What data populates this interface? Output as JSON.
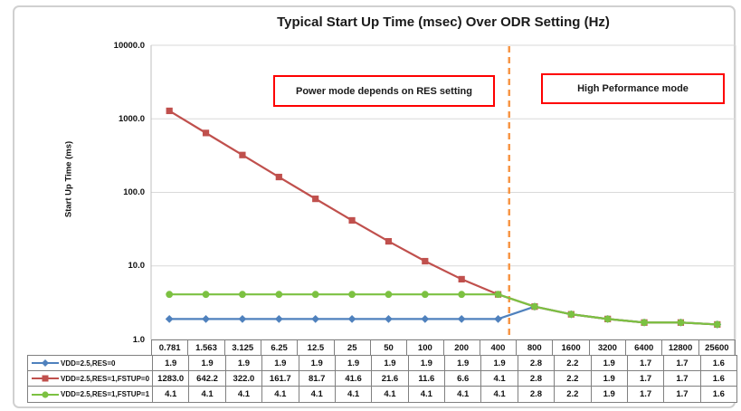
{
  "annotations": {
    "left_box": "Power mode depends on RES setting",
    "right_box": "High Peformance mode"
  },
  "chart_data": {
    "type": "line",
    "title": "Typical Start Up Time (msec) Over ODR Setting (Hz)",
    "xlabel": "",
    "ylabel": "Start Up Time (ms)",
    "y_scale": "log",
    "ylim": [
      1.0,
      10000.0
    ],
    "ytick_labels": [
      "10000.0",
      "1000.0",
      "100.0",
      "10.0",
      "1.0"
    ],
    "grid": "horizontal",
    "legend_position": "data-table-left",
    "categories": [
      "0.781",
      "1.563",
      "3.125",
      "6.25",
      "12.5",
      "25",
      "50",
      "100",
      "200",
      "400",
      "800",
      "1600",
      "3200",
      "6400",
      "12800",
      "25600"
    ],
    "series": [
      {
        "name": "VDD=2.5,RES=0",
        "color": "#4f81bd",
        "marker": "diamond",
        "values": [
          1.9,
          1.9,
          1.9,
          1.9,
          1.9,
          1.9,
          1.9,
          1.9,
          1.9,
          1.9,
          2.8,
          2.2,
          1.9,
          1.7,
          1.7,
          1.6
        ]
      },
      {
        "name": "VDD=2.5,RES=1,FSTUP=0",
        "color": "#c0504d",
        "marker": "square",
        "values": [
          1283.0,
          642.2,
          322.0,
          161.7,
          81.7,
          41.6,
          21.6,
          11.6,
          6.6,
          4.1,
          2.8,
          2.2,
          1.9,
          1.7,
          1.7,
          1.6
        ]
      },
      {
        "name": "VDD=2.5,RES=1,FSTUP=1",
        "color": "#7cc142",
        "marker": "circle",
        "values": [
          4.1,
          4.1,
          4.1,
          4.1,
          4.1,
          4.1,
          4.1,
          4.1,
          4.1,
          4.1,
          2.8,
          2.2,
          1.9,
          1.7,
          1.7,
          1.6
        ]
      }
    ],
    "divider": {
      "color": "#f79646",
      "style": "dashed",
      "between_categories": [
        "400",
        "800"
      ]
    },
    "colors": {
      "gridline": "#d9d9d9",
      "axis": "#bfbfbf",
      "table_border": "#808080",
      "annotation_border": "#fe0000"
    }
  }
}
